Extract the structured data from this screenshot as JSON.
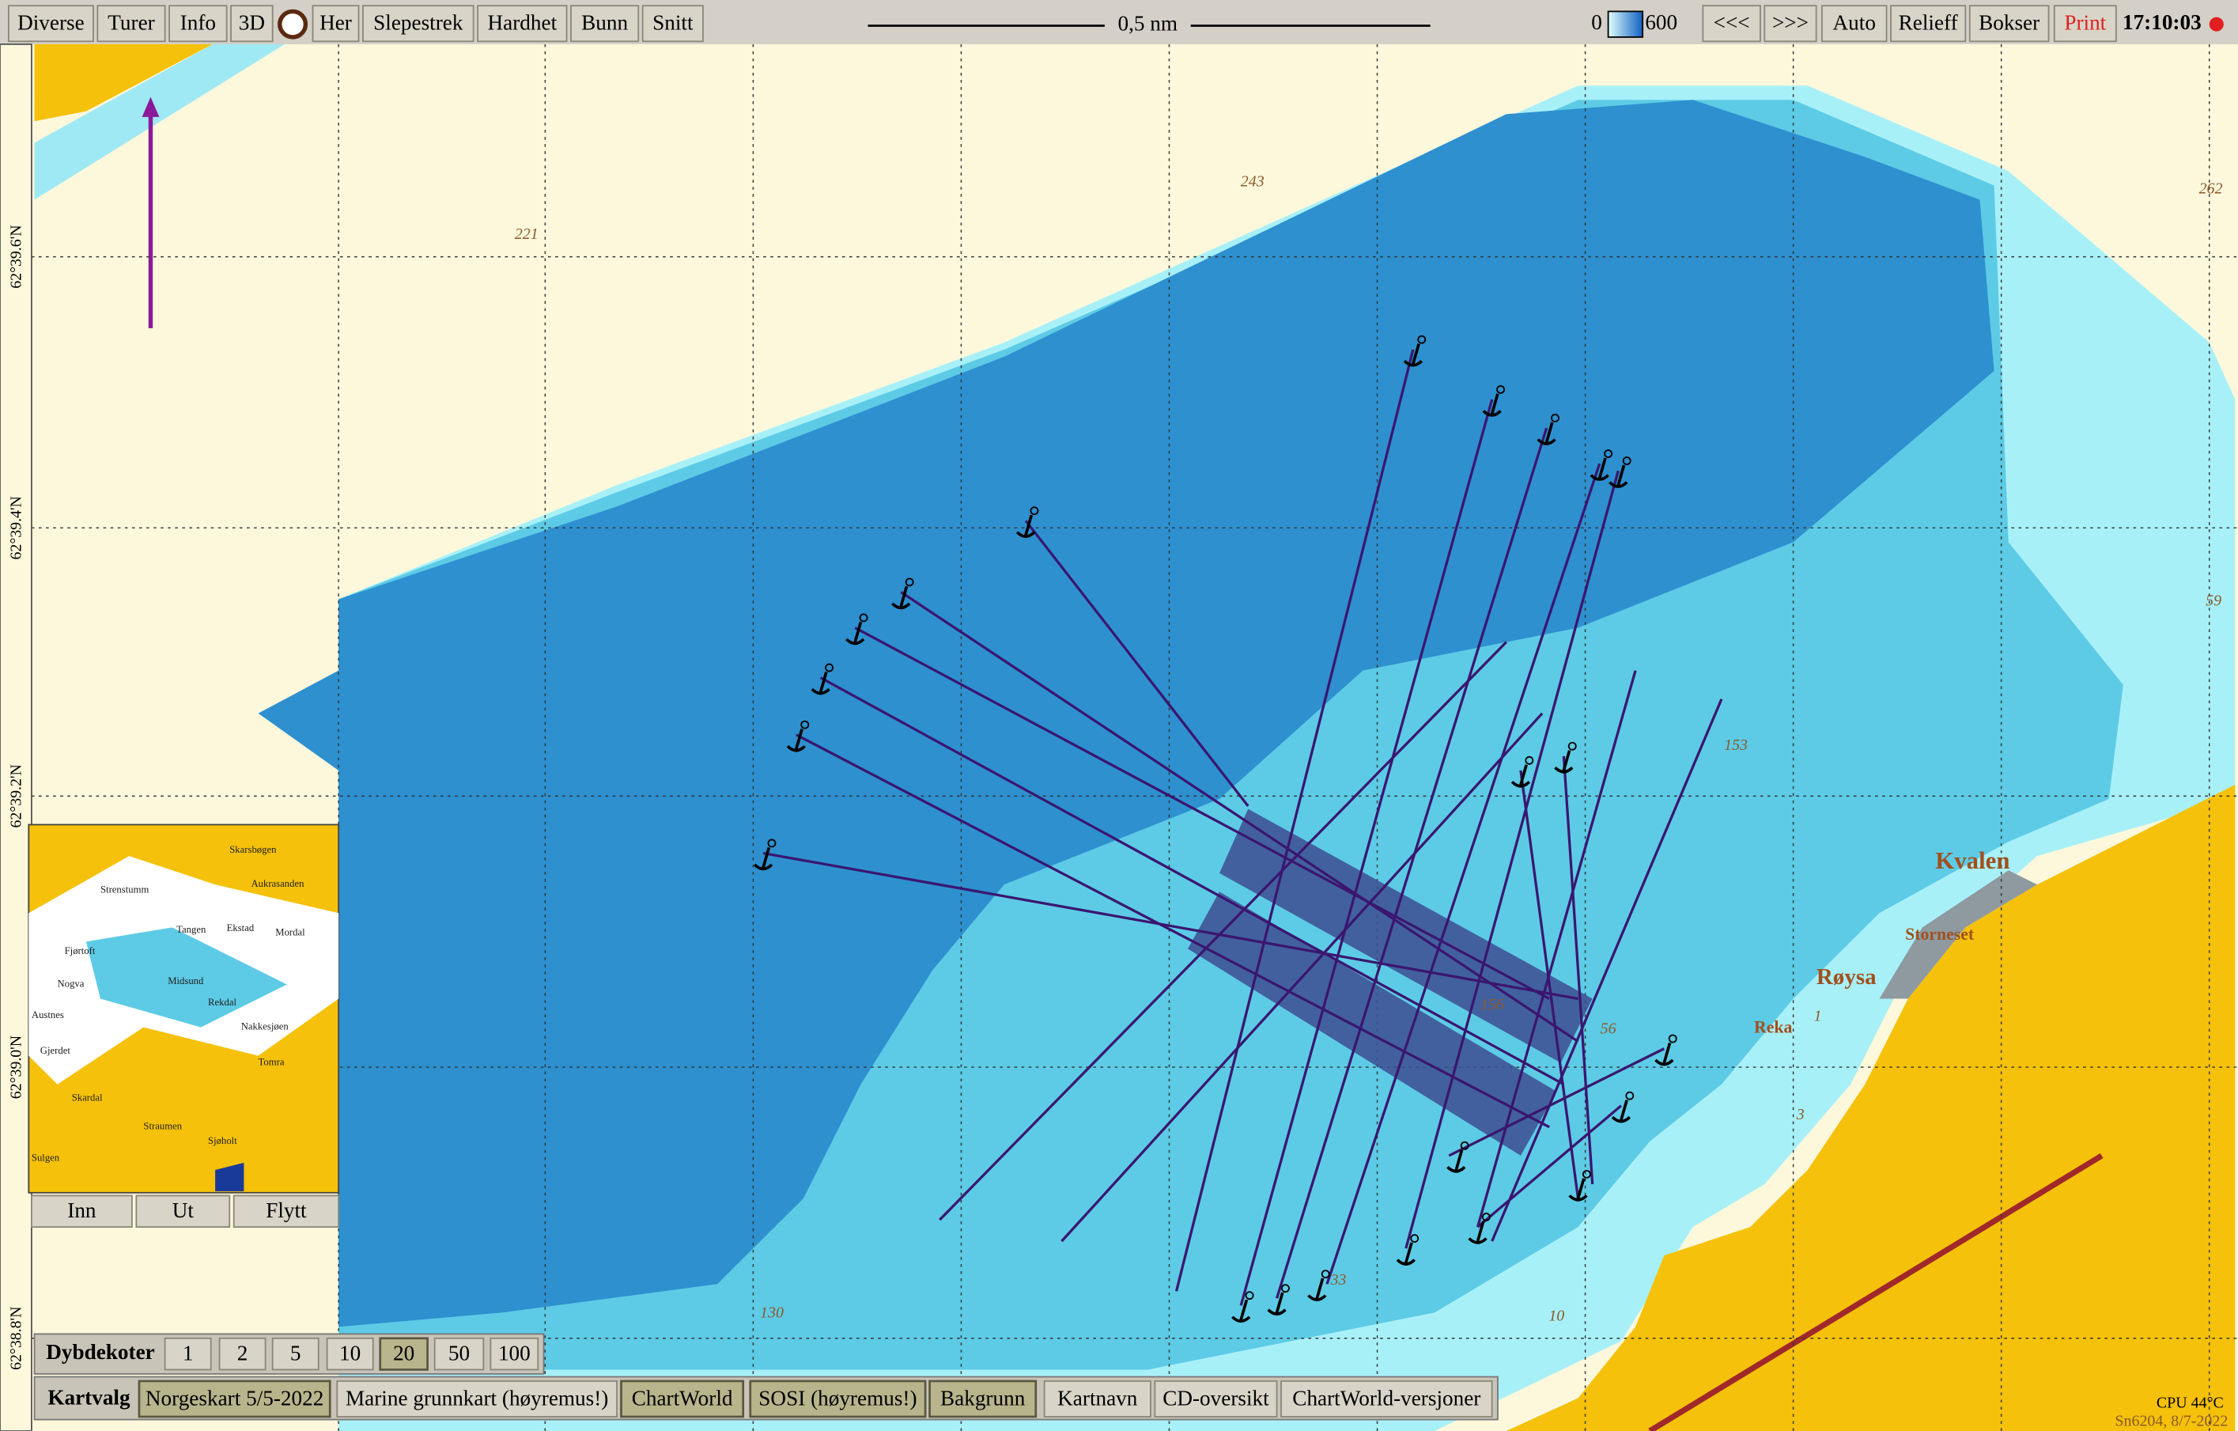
{
  "toolbar": {
    "left": [
      "Diverse",
      "Turer",
      "Info",
      "3D",
      "Her",
      "Slepestrek",
      "Hardhet",
      "Bunn",
      "Snitt"
    ],
    "scale": "0,5 nm",
    "depth_min": "0",
    "depth_max": "600",
    "right": [
      "<<<",
      ">>>",
      "Auto",
      "Relieff",
      "Bokser",
      "Print"
    ],
    "time": "17:10:03"
  },
  "latitudes": [
    "62°39.6'N",
    "62°39.4'N",
    "62°39.2'N",
    "62°39.0'N",
    "62°38.8'N"
  ],
  "map_labels": {
    "places": [
      "Kvalen",
      "Storneset",
      "Røysa",
      "Reka"
    ],
    "depths": [
      "221",
      "243",
      "262",
      "153",
      "130",
      "33",
      "10",
      "1",
      "3",
      "59",
      "56",
      "156"
    ]
  },
  "inset": {
    "places": [
      "Skarsbøgen",
      "Aukrasanden",
      "Strenstumm",
      "Tangen",
      "Ekstad",
      "Mordal",
      "Fjørtoft",
      "Midsund",
      "Nogva",
      "Austnes",
      "Rekdal",
      "Nakkesjøen",
      "Gjerdet",
      "Tomra",
      "Skardal",
      "Straumen",
      "Sjøholt",
      "Sulgen"
    ],
    "buttons": [
      "Inn",
      "Ut",
      "Flytt"
    ]
  },
  "depth_contours": {
    "label": "Dybdekoter",
    "options": [
      "1",
      "2",
      "5",
      "10",
      "20",
      "50",
      "100"
    ]
  },
  "chart_selection": {
    "label": "Kartvalg",
    "options": [
      "Norgeskart 5/5-2022",
      "Marine grunnkart (høyremus!)",
      "ChartWorld",
      "SOSI (høyremus!)",
      "Bakgrunn",
      "Kartnavn",
      "CD-oversikt",
      "ChartWorld-versjoner"
    ]
  },
  "status": {
    "cpu": "CPU 44°C",
    "version": "Sn6204, 8/7-2022"
  }
}
